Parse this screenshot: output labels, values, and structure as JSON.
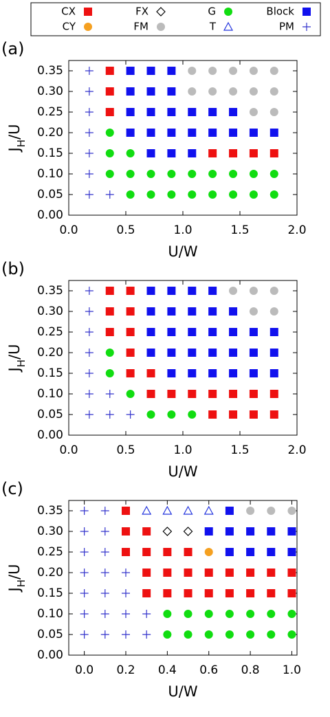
{
  "legend": [
    {
      "name": "CX",
      "color": "#ee1111",
      "marker": "square"
    },
    {
      "name": "FX",
      "color": "#000000",
      "marker": "diamond"
    },
    {
      "name": "G",
      "color": "#11dd11",
      "marker": "circle"
    },
    {
      "name": "Block",
      "color": "#1111ee",
      "marker": "square"
    },
    {
      "name": "CY",
      "color": "#f5a020",
      "marker": "circle"
    },
    {
      "name": "FM",
      "color": "#bbbbbb",
      "marker": "circle"
    },
    {
      "name": "T",
      "color": "#2233dd",
      "marker": "triangle"
    },
    {
      "name": "PM",
      "color": "#3333cc",
      "marker": "plus"
    }
  ],
  "chart_data": [
    {
      "type": "scatter",
      "label": "(a)",
      "xlabel": "U/W",
      "ylabel": [
        "J",
        "H",
        "/U"
      ],
      "xlim": [
        0,
        2
      ],
      "ylim": [
        0,
        0.375
      ],
      "xticks": [
        {
          "value": 0,
          "label": "0.0"
        },
        {
          "value": 0.5,
          "label": "0.5"
        },
        {
          "value": 1,
          "label": "1.0"
        },
        {
          "value": 1.5,
          "label": "1.5"
        },
        {
          "value": 2,
          "label": "2.0"
        }
      ],
      "yticks": [
        {
          "value": 0,
          "label": "0.00"
        },
        {
          "value": 0.05,
          "label": "0.05"
        },
        {
          "value": 0.1,
          "label": "0.10"
        },
        {
          "value": 0.15,
          "label": "0.15"
        },
        {
          "value": 0.2,
          "label": "0.20"
        },
        {
          "value": 0.25,
          "label": "0.25"
        },
        {
          "value": 0.3,
          "label": "0.30"
        },
        {
          "value": 0.35,
          "label": "0.35"
        }
      ],
      "series": [
        {
          "name": "CX",
          "x": [
            0.36,
            0.36,
            0.36,
            1.26,
            1.44,
            1.62,
            1.8
          ],
          "y": [
            0.35,
            0.3,
            0.25,
            0.15,
            0.15,
            0.15,
            0.15
          ]
        },
        {
          "name": "G",
          "x": [
            0.36,
            0.36,
            0.54,
            0.36,
            0.54,
            0.72,
            0.9,
            1.08,
            1.26,
            1.44,
            1.62,
            1.8,
            0.54,
            0.72,
            0.9,
            1.08,
            1.26,
            1.44,
            1.62,
            1.8
          ],
          "y": [
            0.2,
            0.15,
            0.15,
            0.1,
            0.1,
            0.1,
            0.1,
            0.1,
            0.1,
            0.1,
            0.1,
            0.1,
            0.05,
            0.05,
            0.05,
            0.05,
            0.05,
            0.05,
            0.05,
            0.05
          ]
        },
        {
          "name": "Block",
          "x": [
            0.54,
            0.72,
            0.9,
            0.54,
            0.72,
            0.9,
            0.54,
            0.72,
            0.9,
            1.08,
            1.26,
            1.44,
            0.54,
            0.72,
            0.9,
            1.08,
            1.26,
            1.44,
            1.62,
            1.8,
            0.72,
            0.9,
            1.08
          ],
          "y": [
            0.35,
            0.35,
            0.35,
            0.3,
            0.3,
            0.3,
            0.25,
            0.25,
            0.25,
            0.25,
            0.25,
            0.25,
            0.2,
            0.2,
            0.2,
            0.2,
            0.2,
            0.2,
            0.2,
            0.2,
            0.15,
            0.15,
            0.15
          ]
        },
        {
          "name": "FM",
          "x": [
            1.08,
            1.26,
            1.44,
            1.62,
            1.8,
            1.08,
            1.26,
            1.44,
            1.62,
            1.8,
            1.62,
            1.8
          ],
          "y": [
            0.35,
            0.35,
            0.35,
            0.35,
            0.35,
            0.3,
            0.3,
            0.3,
            0.3,
            0.3,
            0.25,
            0.25
          ]
        },
        {
          "name": "PM",
          "x": [
            0.18,
            0.18,
            0.18,
            0.18,
            0.18,
            0.18,
            0.18,
            0.36
          ],
          "y": [
            0.35,
            0.3,
            0.25,
            0.2,
            0.15,
            0.1,
            0.05,
            0.05
          ]
        }
      ]
    },
    {
      "type": "scatter",
      "label": "(b)",
      "xlabel": "U/W",
      "ylabel": [
        "J",
        "H",
        "/U"
      ],
      "xlim": [
        0,
        2
      ],
      "ylim": [
        0,
        0.375
      ],
      "xticks": [
        {
          "value": 0,
          "label": "0.0"
        },
        {
          "value": 0.5,
          "label": "0.5"
        },
        {
          "value": 1,
          "label": "1.0"
        },
        {
          "value": 1.5,
          "label": "1.5"
        },
        {
          "value": 2,
          "label": "2.0"
        }
      ],
      "yticks": [
        {
          "value": 0,
          "label": "0.00"
        },
        {
          "value": 0.05,
          "label": "0.05"
        },
        {
          "value": 0.1,
          "label": "0.10"
        },
        {
          "value": 0.15,
          "label": "0.15"
        },
        {
          "value": 0.2,
          "label": "0.20"
        },
        {
          "value": 0.25,
          "label": "0.25"
        },
        {
          "value": 0.3,
          "label": "0.30"
        },
        {
          "value": 0.35,
          "label": "0.35"
        }
      ],
      "series": [
        {
          "name": "CX",
          "x": [
            0.36,
            0.54,
            0.36,
            0.54,
            0.36,
            0.54,
            0.54,
            0.54,
            0.72,
            0.72,
            0.9,
            1.08,
            1.26,
            1.44,
            1.62,
            1.8,
            1.26,
            1.44,
            1.62,
            1.8
          ],
          "y": [
            0.35,
            0.35,
            0.3,
            0.3,
            0.25,
            0.25,
            0.2,
            0.15,
            0.15,
            0.1,
            0.1,
            0.1,
            0.1,
            0.1,
            0.1,
            0.1,
            0.05,
            0.05,
            0.05,
            0.05
          ]
        },
        {
          "name": "G",
          "x": [
            0.36,
            0.36,
            0.54,
            0.72,
            0.9,
            1.08
          ],
          "y": [
            0.2,
            0.15,
            0.1,
            0.05,
            0.05,
            0.05
          ]
        },
        {
          "name": "Block",
          "x": [
            0.72,
            0.9,
            1.08,
            1.26,
            0.72,
            0.9,
            1.08,
            1.26,
            1.44,
            0.72,
            0.9,
            1.08,
            1.26,
            1.44,
            1.62,
            1.8,
            0.72,
            0.9,
            1.08,
            1.26,
            1.44,
            1.62,
            1.8,
            0.9,
            1.08,
            1.26,
            1.44,
            1.62,
            1.8
          ],
          "y": [
            0.35,
            0.35,
            0.35,
            0.35,
            0.3,
            0.3,
            0.3,
            0.3,
            0.3,
            0.25,
            0.25,
            0.25,
            0.25,
            0.25,
            0.25,
            0.25,
            0.2,
            0.2,
            0.2,
            0.2,
            0.2,
            0.2,
            0.2,
            0.15,
            0.15,
            0.15,
            0.15,
            0.15,
            0.15
          ]
        },
        {
          "name": "FM",
          "x": [
            1.44,
            1.62,
            1.8,
            1.62,
            1.8
          ],
          "y": [
            0.35,
            0.35,
            0.35,
            0.3,
            0.3
          ]
        },
        {
          "name": "PM",
          "x": [
            0.18,
            0.18,
            0.18,
            0.18,
            0.18,
            0.18,
            0.18,
            0.36,
            0.36,
            0.54
          ],
          "y": [
            0.35,
            0.3,
            0.25,
            0.2,
            0.15,
            0.1,
            0.05,
            0.1,
            0.05,
            0.05
          ]
        }
      ]
    },
    {
      "type": "scatter",
      "label": "(c)",
      "xlabel": "U/W",
      "ylabel": [
        "J",
        "H",
        "/U"
      ],
      "xlim": [
        -0.075,
        1.025
      ],
      "ylim": [
        0,
        0.375
      ],
      "xticks": [
        {
          "value": 0,
          "label": "0.0"
        },
        {
          "value": 0.2,
          "label": "0.2"
        },
        {
          "value": 0.4,
          "label": "0.4"
        },
        {
          "value": 0.6,
          "label": "0.6"
        },
        {
          "value": 0.8,
          "label": "0.8"
        },
        {
          "value": 1,
          "label": "1.0"
        }
      ],
      "yticks": [
        {
          "value": 0,
          "label": "0.00"
        },
        {
          "value": 0.05,
          "label": "0.05"
        },
        {
          "value": 0.1,
          "label": "0.10"
        },
        {
          "value": 0.15,
          "label": "0.15"
        },
        {
          "value": 0.2,
          "label": "0.20"
        },
        {
          "value": 0.25,
          "label": "0.25"
        },
        {
          "value": 0.3,
          "label": "0.30"
        },
        {
          "value": 0.35,
          "label": "0.35"
        }
      ],
      "series": [
        {
          "name": "CX",
          "x": [
            0.2,
            0.2,
            0.3,
            0.2,
            0.3,
            0.4,
            0.5,
            0.3,
            0.4,
            0.5,
            0.6,
            0.7,
            0.8,
            0.9,
            1,
            0.3,
            0.4,
            0.5,
            0.6,
            0.7,
            0.8,
            0.9,
            1
          ],
          "y": [
            0.35,
            0.3,
            0.3,
            0.25,
            0.25,
            0.25,
            0.25,
            0.2,
            0.2,
            0.2,
            0.2,
            0.2,
            0.2,
            0.2,
            0.2,
            0.15,
            0.15,
            0.15,
            0.15,
            0.15,
            0.15,
            0.15,
            0.15
          ]
        },
        {
          "name": "FX",
          "x": [
            0.4,
            0.5
          ],
          "y": [
            0.3,
            0.3
          ]
        },
        {
          "name": "G",
          "x": [
            0.4,
            0.5,
            0.6,
            0.7,
            0.8,
            0.9,
            1,
            0.4,
            0.5,
            0.6,
            0.7,
            0.8,
            0.9,
            1
          ],
          "y": [
            0.1,
            0.1,
            0.1,
            0.1,
            0.1,
            0.1,
            0.1,
            0.05,
            0.05,
            0.05,
            0.05,
            0.05,
            0.05,
            0.05
          ]
        },
        {
          "name": "Block",
          "x": [
            0.7,
            0.6,
            0.7,
            0.8,
            0.9,
            1,
            0.7,
            0.8,
            0.9,
            1
          ],
          "y": [
            0.35,
            0.3,
            0.3,
            0.3,
            0.3,
            0.3,
            0.25,
            0.25,
            0.25,
            0.25
          ]
        },
        {
          "name": "CY",
          "x": [
            0.6
          ],
          "y": [
            0.25
          ]
        },
        {
          "name": "FM",
          "x": [
            0.8,
            0.9,
            1
          ],
          "y": [
            0.35,
            0.35,
            0.35
          ]
        },
        {
          "name": "T",
          "x": [
            0.3,
            0.4,
            0.5,
            0.6
          ],
          "y": [
            0.35,
            0.35,
            0.35,
            0.35
          ]
        },
        {
          "name": "PM",
          "x": [
            0,
            0.1,
            0,
            0.1,
            0,
            0.1,
            0,
            0.1,
            0.2,
            0,
            0.1,
            0.2,
            0,
            0.1,
            0.2,
            0.3,
            0,
            0.1,
            0.2,
            0.3
          ],
          "y": [
            0.35,
            0.35,
            0.3,
            0.3,
            0.25,
            0.25,
            0.2,
            0.2,
            0.2,
            0.15,
            0.15,
            0.15,
            0.1,
            0.1,
            0.1,
            0.1,
            0.05,
            0.05,
            0.05,
            0.05
          ]
        }
      ]
    }
  ]
}
